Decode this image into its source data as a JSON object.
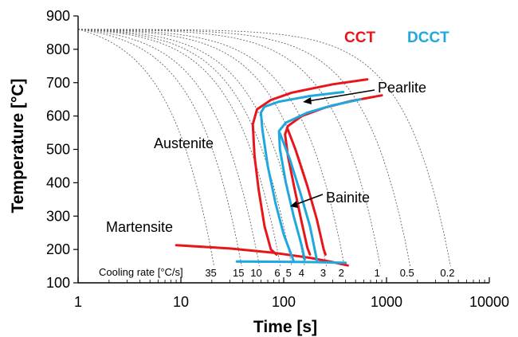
{
  "chart_data": {
    "type": "line",
    "title": "",
    "xlabel": "Time [s]",
    "ylabel": "Temperature [°C]",
    "xscale": "log",
    "xlim": [
      1,
      10000
    ],
    "ylim": [
      100,
      900
    ],
    "xticks": [
      "1",
      "10",
      "100",
      "1000",
      "10000"
    ],
    "yticks": [
      "100",
      "200",
      "300",
      "400",
      "500",
      "600",
      "700",
      "800",
      "900"
    ],
    "grid": false,
    "legend": {
      "position": "top-right",
      "entries": [
        {
          "label": "CCT",
          "color": "#e8161b"
        },
        {
          "label": "DCCT",
          "color": "#1fa7e0"
        }
      ]
    },
    "annotations": {
      "pearlite": "Pearlite",
      "bainite": "Bainite",
      "austenite": "Austenite",
      "martensite": "Martensite",
      "cooling_rate_label": "Cooling rate [°C/s]"
    },
    "cooling_rates": [
      {
        "label": "35",
        "x": 21
      },
      {
        "label": "15",
        "x": 39
      },
      {
        "label": "10",
        "x": 58
      },
      {
        "label": "6",
        "x": 93
      },
      {
        "label": "5",
        "x": 120
      },
      {
        "label": "4",
        "x": 160
      },
      {
        "label": "3",
        "x": 260
      },
      {
        "label": "2",
        "x": 390
      },
      {
        "label": "1",
        "x": 870
      },
      {
        "label": "0.5",
        "x": 1700
      },
      {
        "label": "0.2",
        "x": 4200
      }
    ],
    "series": [
      {
        "name": "CCT",
        "color": "#e8161b",
        "segments": [
          [
            [
              650,
              710
            ],
            [
              300,
              695
            ],
            [
              120,
              670
            ],
            [
              75,
              648
            ],
            [
              55,
              620
            ],
            [
              50,
              575
            ],
            [
              52,
              480
            ],
            [
              57,
              380
            ],
            [
              65,
              270
            ],
            [
              75,
              200
            ],
            [
              85,
              185
            ]
          ],
          [
            [
              900,
              662
            ],
            [
              450,
              645
            ],
            [
              250,
              625
            ],
            [
              150,
              600
            ],
            [
              110,
              570
            ],
            [
              103,
              545
            ],
            [
              110,
              480
            ],
            [
              128,
              380
            ],
            [
              150,
              280
            ],
            [
              170,
              205
            ],
            [
              180,
              185
            ]
          ],
          [
            [
              108,
              565
            ],
            [
              130,
              500
            ],
            [
              170,
              390
            ],
            [
              210,
              290
            ],
            [
              245,
              200
            ],
            [
              255,
              185
            ]
          ],
          [
            [
              9,
              213
            ],
            [
              30,
              203
            ],
            [
              80,
              190
            ],
            [
              180,
              175
            ],
            [
              300,
              162
            ],
            [
              420,
              152
            ]
          ]
        ]
      },
      {
        "name": "DCCT",
        "color": "#1fa7e0",
        "segments": [
          [
            [
              380,
              672
            ],
            [
              180,
              660
            ],
            [
              90,
              643
            ],
            [
              65,
              628
            ],
            [
              60,
              610
            ],
            [
              62,
              560
            ],
            [
              70,
              450
            ],
            [
              83,
              340
            ],
            [
              100,
              245
            ],
            [
              120,
              180
            ],
            [
              125,
              165
            ]
          ],
          [
            [
              560,
              650
            ],
            [
              300,
              632
            ],
            [
              170,
              610
            ],
            [
              105,
              580
            ],
            [
              90,
              555
            ],
            [
              92,
              500
            ],
            [
              105,
              400
            ],
            [
              125,
              300
            ],
            [
              150,
              210
            ],
            [
              160,
              170
            ]
          ],
          [
            [
              92,
              548
            ],
            [
              115,
              470
            ],
            [
              145,
              370
            ],
            [
              180,
              270
            ],
            [
              205,
              185
            ],
            [
              210,
              168
            ]
          ],
          [
            [
              35,
              164
            ],
            [
              100,
              163
            ],
            [
              200,
              162
            ],
            [
              400,
              160
            ]
          ]
        ]
      }
    ]
  }
}
